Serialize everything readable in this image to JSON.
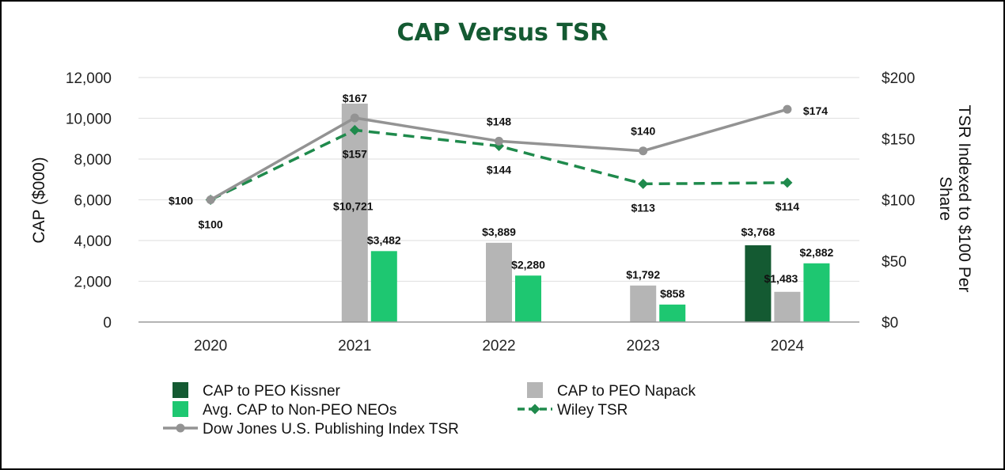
{
  "chart_data": {
    "type": "bar",
    "title": "CAP Versus TSR",
    "title_color": "#145a32",
    "categories": [
      "2020",
      "2021",
      "2022",
      "2023",
      "2024"
    ],
    "y_left": {
      "label": "CAP ($000)",
      "ylim": [
        0,
        12000
      ],
      "ticks": [
        0,
        2000,
        4000,
        6000,
        8000,
        10000,
        12000
      ],
      "tick_labels": [
        "0",
        "2,000",
        "4,000",
        "6,000",
        "8,000",
        "10,000",
        "12,000"
      ]
    },
    "y_right": {
      "label_lines": [
        "TSR Indexed to $100 Per",
        "Share"
      ],
      "ylim": [
        0,
        200
      ],
      "ticks": [
        0,
        50,
        100,
        150,
        200
      ],
      "tick_labels": [
        "$0",
        "$50",
        "$100",
        "$150",
        "$200"
      ]
    },
    "bar_series": [
      {
        "name": "CAP to PEO Kissner",
        "color": "#145a32",
        "values": [
          null,
          null,
          null,
          null,
          3768
        ],
        "labels": [
          "",
          "",
          "",
          "",
          "$3,768"
        ]
      },
      {
        "name": "CAP to PEO Napack",
        "color": "#b5b5b5",
        "values": [
          null,
          10721,
          3889,
          1792,
          1483
        ],
        "labels": [
          "",
          "$10,721",
          "$3,889",
          "$1,792",
          "$1,483"
        ]
      },
      {
        "name": "Avg. CAP to Non-PEO NEOs",
        "color": "#1ec771",
        "values": [
          null,
          3482,
          2280,
          858,
          2882
        ],
        "labels": [
          "",
          "$3,482",
          "$2,280",
          "$858",
          "$2,882"
        ]
      }
    ],
    "line_series": [
      {
        "name": "Wiley TSR",
        "color": "#1f8a4c",
        "style": "dashed",
        "marker": "diamond",
        "values": [
          100,
          157,
          144,
          113,
          114
        ],
        "labels": [
          "$100",
          "$157",
          "$144",
          "$113",
          "$114"
        ]
      },
      {
        "name": "Dow Jones U.S. Publishing Index TSR",
        "color": "#939393",
        "style": "solid",
        "marker": "circle",
        "values": [
          100,
          167,
          148,
          140,
          174
        ],
        "labels": [
          "$100",
          "$167",
          "$148",
          "$140",
          "$174"
        ]
      }
    ],
    "legend": {
      "placement": "bottom",
      "entries": [
        {
          "name": "CAP to PEO Kissner",
          "kind": "bar",
          "color": "#145a32"
        },
        {
          "name": "CAP to PEO Napack",
          "kind": "bar",
          "color": "#b5b5b5"
        },
        {
          "name": "Avg. CAP to Non-PEO NEOs",
          "kind": "bar",
          "color": "#1ec771"
        },
        {
          "name": "Wiley TSR",
          "kind": "line-diamond-dashed",
          "color": "#1f8a4c"
        },
        {
          "name": "Dow Jones U.S. Publishing Index TSR",
          "kind": "line-circle",
          "color": "#939393"
        }
      ]
    },
    "grid": true
  }
}
